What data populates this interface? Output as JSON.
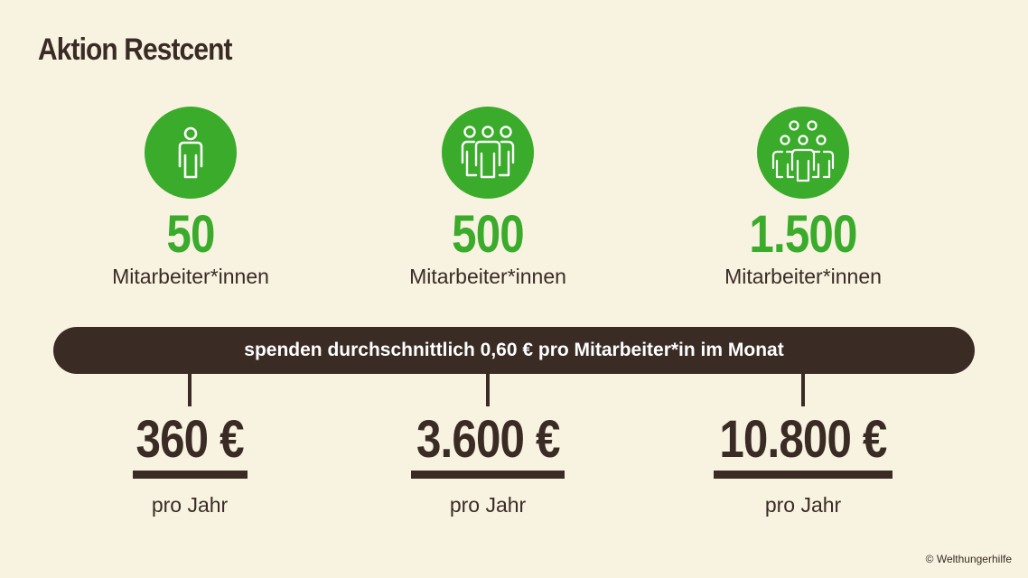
{
  "title": "Aktion Restcent",
  "columns": [
    {
      "count": "50",
      "label": "Mitarbeiter*innen",
      "icon": "single-person-icon"
    },
    {
      "count": "500",
      "label": "Mitarbeiter*innen",
      "icon": "group-of-three-icon"
    },
    {
      "count": "1.500",
      "label": "Mitarbeiter*innen",
      "icon": "large-group-icon"
    }
  ],
  "banner": "spenden durchschnittlich 0,60 € pro Mitarbeiter*in im Monat",
  "results": [
    {
      "amount": "360 €",
      "period": "pro Jahr"
    },
    {
      "amount": "3.600 €",
      "period": "pro Jahr"
    },
    {
      "amount": "10.800 €",
      "period": "pro Jahr"
    }
  ],
  "credit": "© Welthungerhilfe",
  "colors": {
    "background": "#f8f3e1",
    "accent": "#3aab2a",
    "dark": "#3a2b25"
  }
}
